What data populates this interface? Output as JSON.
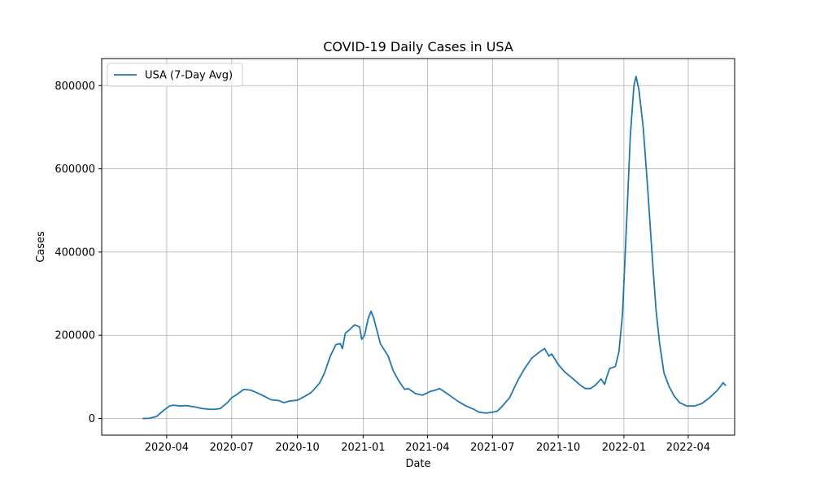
{
  "chart_data": {
    "type": "line",
    "title": "COVID-19 Daily Cases in USA",
    "xlabel": "Date",
    "ylabel": "Cases",
    "grid": true,
    "legend": {
      "placement": "top-left"
    },
    "xlim": [
      "2020-01-01",
      "2022-06-05"
    ],
    "ylim": [
      -40000,
      865000
    ],
    "x_ticks": [
      "2020-04-01",
      "2020-07-01",
      "2020-10-01",
      "2021-01-01",
      "2021-04-01",
      "2021-07-01",
      "2021-10-01",
      "2022-01-01",
      "2022-04-01"
    ],
    "x_tick_labels": [
      "2020-04",
      "2020-07",
      "2020-10",
      "2021-01",
      "2021-04",
      "2021-07",
      "2021-10",
      "2022-01",
      "2022-04"
    ],
    "y_ticks": [
      0,
      200000,
      400000,
      600000,
      800000
    ],
    "y_tick_labels": [
      "0",
      "200000",
      "400000",
      "600000",
      "800000"
    ],
    "series": [
      {
        "name": "USA (7-Day Avg)",
        "color": "#1f77b4",
        "points": [
          [
            "2020-02-28",
            0
          ],
          [
            "2020-03-08",
            500
          ],
          [
            "2020-03-18",
            5000
          ],
          [
            "2020-03-28",
            20000
          ],
          [
            "2020-04-05",
            30000
          ],
          [
            "2020-04-10",
            32000
          ],
          [
            "2020-04-20",
            30000
          ],
          [
            "2020-04-28",
            31000
          ],
          [
            "2020-05-10",
            28000
          ],
          [
            "2020-05-20",
            24000
          ],
          [
            "2020-06-01",
            22000
          ],
          [
            "2020-06-08",
            22000
          ],
          [
            "2020-06-15",
            24000
          ],
          [
            "2020-06-25",
            38000
          ],
          [
            "2020-07-01",
            50000
          ],
          [
            "2020-07-10",
            60000
          ],
          [
            "2020-07-18",
            70000
          ],
          [
            "2020-07-28",
            68000
          ],
          [
            "2020-08-05",
            62000
          ],
          [
            "2020-08-15",
            54000
          ],
          [
            "2020-08-25",
            45000
          ],
          [
            "2020-09-05",
            43000
          ],
          [
            "2020-09-12",
            38000
          ],
          [
            "2020-09-20",
            42000
          ],
          [
            "2020-10-01",
            44000
          ],
          [
            "2020-10-10",
            52000
          ],
          [
            "2020-10-20",
            62000
          ],
          [
            "2020-11-01",
            85000
          ],
          [
            "2020-11-08",
            110000
          ],
          [
            "2020-11-16",
            150000
          ],
          [
            "2020-11-24",
            178000
          ],
          [
            "2020-11-30",
            180000
          ],
          [
            "2020-12-03",
            168000
          ],
          [
            "2020-12-07",
            205000
          ],
          [
            "2020-12-14",
            215000
          ],
          [
            "2020-12-20",
            225000
          ],
          [
            "2020-12-27",
            220000
          ],
          [
            "2020-12-30",
            190000
          ],
          [
            "2021-01-03",
            200000
          ],
          [
            "2021-01-08",
            240000
          ],
          [
            "2021-01-12",
            258000
          ],
          [
            "2021-01-16",
            240000
          ],
          [
            "2021-01-25",
            180000
          ],
          [
            "2021-02-05",
            150000
          ],
          [
            "2021-02-12",
            115000
          ],
          [
            "2021-02-20",
            90000
          ],
          [
            "2021-02-28",
            70000
          ],
          [
            "2021-03-05",
            72000
          ],
          [
            "2021-03-15",
            60000
          ],
          [
            "2021-03-25",
            56000
          ],
          [
            "2021-04-05",
            65000
          ],
          [
            "2021-04-12",
            68000
          ],
          [
            "2021-04-18",
            72000
          ],
          [
            "2021-04-25",
            64000
          ],
          [
            "2021-05-05",
            52000
          ],
          [
            "2021-05-15",
            40000
          ],
          [
            "2021-05-25",
            30000
          ],
          [
            "2021-06-05",
            22000
          ],
          [
            "2021-06-12",
            15000
          ],
          [
            "2021-06-22",
            13000
          ],
          [
            "2021-07-01",
            15000
          ],
          [
            "2021-07-08",
            18000
          ],
          [
            "2021-07-15",
            30000
          ],
          [
            "2021-07-25",
            50000
          ],
          [
            "2021-08-05",
            90000
          ],
          [
            "2021-08-15",
            120000
          ],
          [
            "2021-08-25",
            145000
          ],
          [
            "2021-09-05",
            160000
          ],
          [
            "2021-09-12",
            168000
          ],
          [
            "2021-09-18",
            150000
          ],
          [
            "2021-09-22",
            155000
          ],
          [
            "2021-10-01",
            130000
          ],
          [
            "2021-10-10",
            112000
          ],
          [
            "2021-10-20",
            98000
          ],
          [
            "2021-11-01",
            80000
          ],
          [
            "2021-11-08",
            72000
          ],
          [
            "2021-11-15",
            72000
          ],
          [
            "2021-11-22",
            80000
          ],
          [
            "2021-11-30",
            95000
          ],
          [
            "2021-12-05",
            82000
          ],
          [
            "2021-12-08",
            100000
          ],
          [
            "2021-12-12",
            120000
          ],
          [
            "2021-12-20",
            125000
          ],
          [
            "2021-12-25",
            160000
          ],
          [
            "2021-12-30",
            250000
          ],
          [
            "2022-01-05",
            480000
          ],
          [
            "2022-01-10",
            680000
          ],
          [
            "2022-01-15",
            800000
          ],
          [
            "2022-01-18",
            822000
          ],
          [
            "2022-01-22",
            790000
          ],
          [
            "2022-01-28",
            700000
          ],
          [
            "2022-02-03",
            560000
          ],
          [
            "2022-02-10",
            380000
          ],
          [
            "2022-02-15",
            260000
          ],
          [
            "2022-02-20",
            180000
          ],
          [
            "2022-02-26",
            110000
          ],
          [
            "2022-03-05",
            78000
          ],
          [
            "2022-03-12",
            55000
          ],
          [
            "2022-03-20",
            38000
          ],
          [
            "2022-03-30",
            30000
          ],
          [
            "2022-04-10",
            30000
          ],
          [
            "2022-04-20",
            36000
          ],
          [
            "2022-05-01",
            50000
          ],
          [
            "2022-05-12",
            68000
          ],
          [
            "2022-05-20",
            86000
          ],
          [
            "2022-05-23",
            80000
          ]
        ]
      }
    ]
  }
}
